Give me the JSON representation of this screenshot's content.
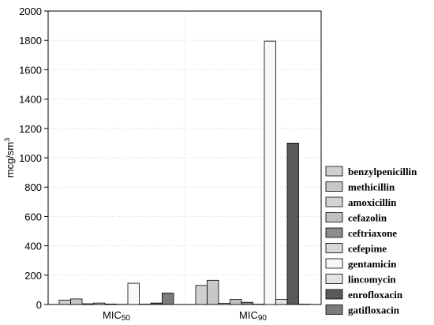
{
  "chart_data": {
    "type": "bar",
    "ylabel": "mcg/sm",
    "ylabel_superscript": "3",
    "ylim": [
      0,
      2000
    ],
    "yticks": [
      "0",
      "200",
      "400",
      "600",
      "800",
      "1000",
      "1200",
      "1400",
      "1600",
      "1800",
      "2000"
    ],
    "categories": [
      {
        "label": "MIC",
        "subscript": "50"
      },
      {
        "label": "MIC",
        "subscript": "90"
      }
    ],
    "grid": true,
    "legend_position": "right",
    "series": [
      {
        "name": "benzylpenicillin",
        "color": "#d0d0d0",
        "values": [
          30,
          130
        ]
      },
      {
        "name": "methicillin",
        "color": "#c8c8c8",
        "values": [
          38,
          165
        ]
      },
      {
        "name": "amoxicillin",
        "color": "#d4d4d4",
        "values": [
          5,
          8
        ]
      },
      {
        "name": "cefazolin",
        "color": "#c0c0c0",
        "values": [
          10,
          35
        ]
      },
      {
        "name": "ceftriaxone",
        "color": "#8c8c8c",
        "values": [
          3,
          15
        ]
      },
      {
        "name": "cefepime",
        "color": "#d8d8d8",
        "values": [
          1,
          2
        ]
      },
      {
        "name": "gentamicin",
        "color": "#f8f8f8",
        "values": [
          145,
          1795
        ]
      },
      {
        "name": "lincomycin",
        "color": "#e4e4e4",
        "values": [
          2,
          35
        ]
      },
      {
        "name": "enrofloxacin",
        "color": "#5a5a5a",
        "values": [
          10,
          1100
        ]
      },
      {
        "name": "gatifloxacin",
        "color": "#7c7c7c",
        "values": [
          78,
          2
        ]
      }
    ]
  }
}
